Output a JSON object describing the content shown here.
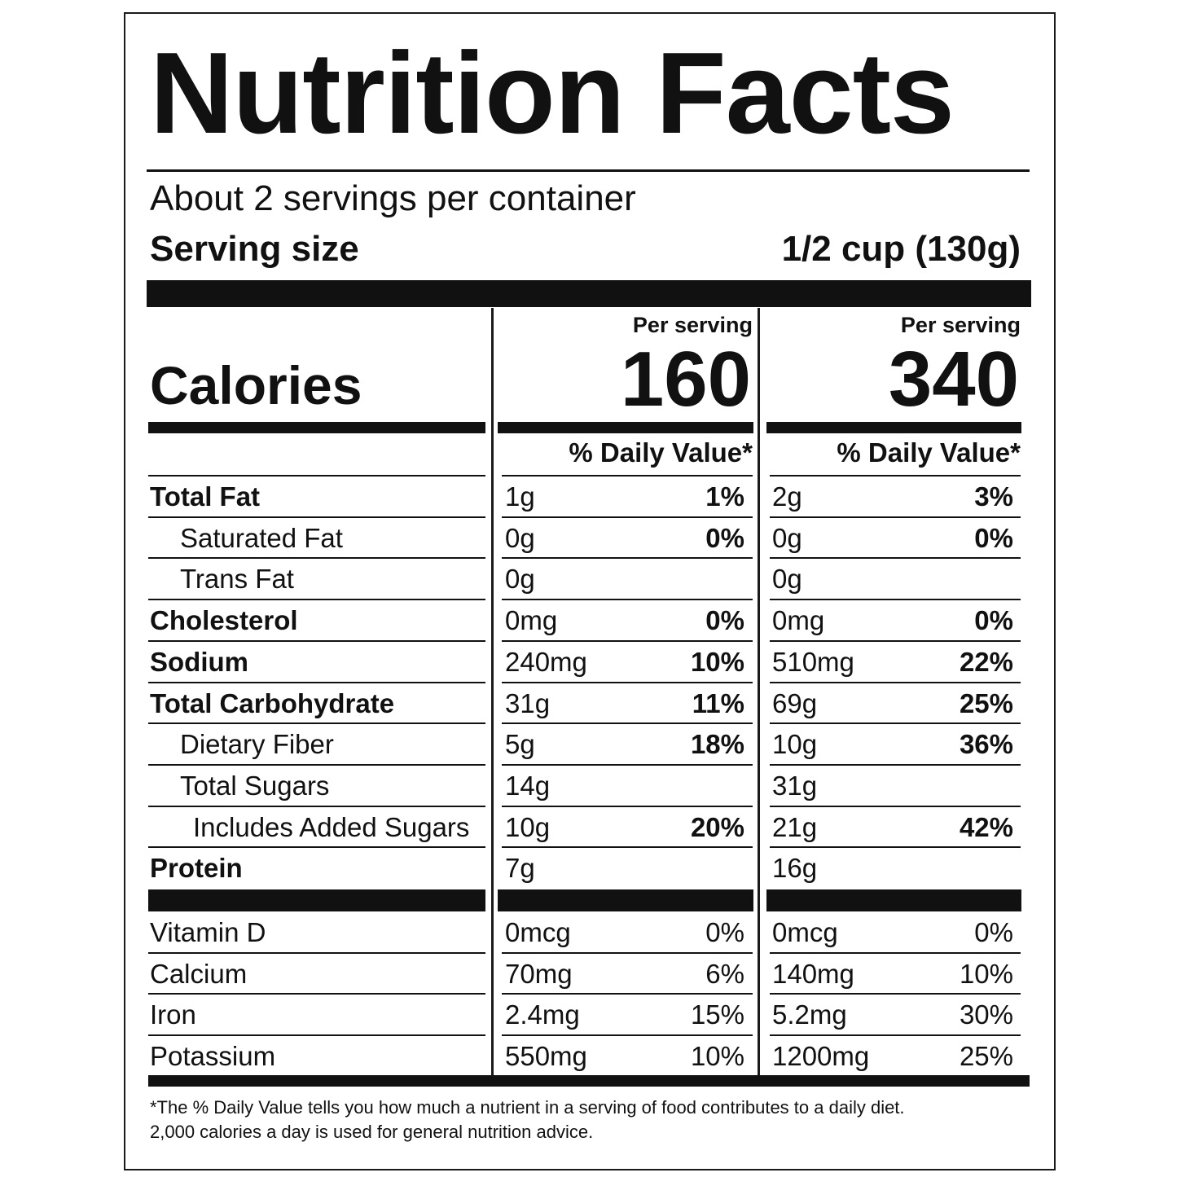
{
  "title": "Nutrition Facts",
  "servings_per_container": "About 2 servings per container",
  "serving_size_label": "Serving size",
  "serving_size_value": "1/2 cup (130g)",
  "calories_label": "Calories",
  "columns": [
    {
      "header": "Per serving",
      "calories": "160",
      "dv_header": "% Daily Value*"
    },
    {
      "header": "Per serving",
      "calories": "340",
      "dv_header": "% Daily Value*"
    }
  ],
  "nutrients": [
    {
      "name": "Total Fat",
      "bold": true,
      "indent": 0,
      "c1_amount": "1g",
      "c1_dv": "1%",
      "c2_amount": "2g",
      "c2_dv": "3%"
    },
    {
      "name": "Saturated Fat",
      "bold": false,
      "indent": 1,
      "c1_amount": "0g",
      "c1_dv": "0%",
      "c2_amount": "0g",
      "c2_dv": "0%"
    },
    {
      "name": "Trans Fat",
      "bold": false,
      "indent": 1,
      "c1_amount": "0g",
      "c1_dv": "",
      "c2_amount": "0g",
      "c2_dv": ""
    },
    {
      "name": "Cholesterol",
      "bold": true,
      "indent": 0,
      "c1_amount": "0mg",
      "c1_dv": "0%",
      "c2_amount": "0mg",
      "c2_dv": "0%"
    },
    {
      "name": "Sodium",
      "bold": true,
      "indent": 0,
      "c1_amount": "240mg",
      "c1_dv": "10%",
      "c2_amount": "510mg",
      "c2_dv": "22%"
    },
    {
      "name": "Total Carbohydrate",
      "bold": true,
      "indent": 0,
      "c1_amount": "31g",
      "c1_dv": "11%",
      "c2_amount": "69g",
      "c2_dv": "25%"
    },
    {
      "name": "Dietary Fiber",
      "bold": false,
      "indent": 1,
      "c1_amount": "5g",
      "c1_dv": "18%",
      "c2_amount": "10g",
      "c2_dv": "36%"
    },
    {
      "name": "Total Sugars",
      "bold": false,
      "indent": 1,
      "c1_amount": "14g",
      "c1_dv": "",
      "c2_amount": "31g",
      "c2_dv": ""
    },
    {
      "name": "Includes Added Sugars",
      "bold": false,
      "indent": 2,
      "c1_amount": "10g",
      "c1_dv": "20%",
      "c2_amount": "21g",
      "c2_dv": "42%"
    },
    {
      "name": "Protein",
      "bold": true,
      "indent": 0,
      "c1_amount": "7g",
      "c1_dv": "",
      "c2_amount": "16g",
      "c2_dv": ""
    }
  ],
  "vitamins": [
    {
      "name": "Vitamin D",
      "c1_amount": "0mcg",
      "c1_dv": "0%",
      "c2_amount": "0mcg",
      "c2_dv": "0%"
    },
    {
      "name": "Calcium",
      "c1_amount": "70mg",
      "c1_dv": "6%",
      "c2_amount": "140mg",
      "c2_dv": "10%"
    },
    {
      "name": "Iron",
      "c1_amount": "2.4mg",
      "c1_dv": "15%",
      "c2_amount": "5.2mg",
      "c2_dv": "30%"
    },
    {
      "name": "Potassium",
      "c1_amount": "550mg",
      "c1_dv": "10%",
      "c2_amount": "1200mg",
      "c2_dv": "25%"
    }
  ],
  "footnote_line1": "*The % Daily Value tells you how much a nutrient in a serving of food contributes to a daily diet.",
  "footnote_line2": "2,000 calories a day is used for general nutrition advice."
}
